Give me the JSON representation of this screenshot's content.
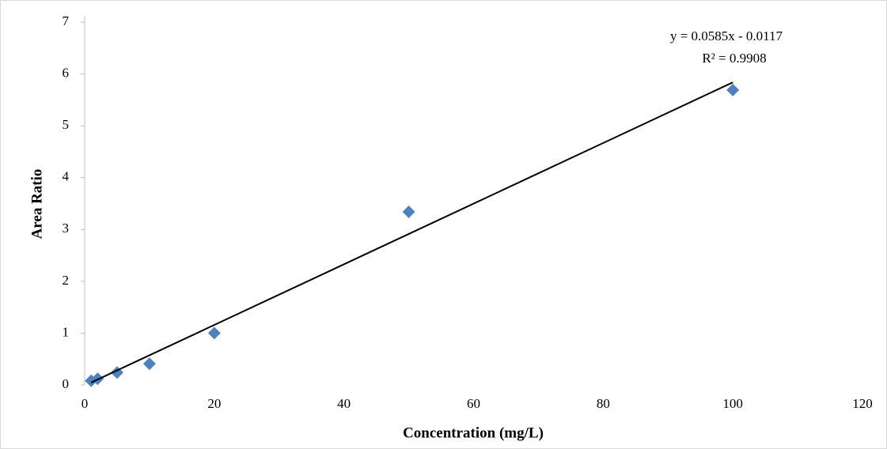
{
  "chart_data": {
    "type": "scatter",
    "x_label": "Concentration (mg/L)",
    "y_label": "Area Ratio",
    "series": [
      {
        "color": "#4f81bd",
        "x": [
          1,
          2,
          5,
          10,
          20,
          50,
          100
        ],
        "values": [
          0.08,
          0.12,
          0.24,
          0.41,
          1.0,
          3.34,
          5.69
        ]
      }
    ],
    "xlim": [
      0,
      120
    ],
    "xticks": [
      0,
      20,
      40,
      60,
      80,
      100,
      120
    ],
    "ylim": [
      0,
      7
    ],
    "yticks": [
      0,
      1,
      2,
      3,
      4,
      5,
      6,
      7
    ],
    "grid": false,
    "trendline": {
      "slope": 0.0585,
      "intercept": -0.0117,
      "color": "#000000",
      "equation": "y = 0.0585x - 0.0117",
      "r2_label": "R² = 0.9908"
    }
  }
}
